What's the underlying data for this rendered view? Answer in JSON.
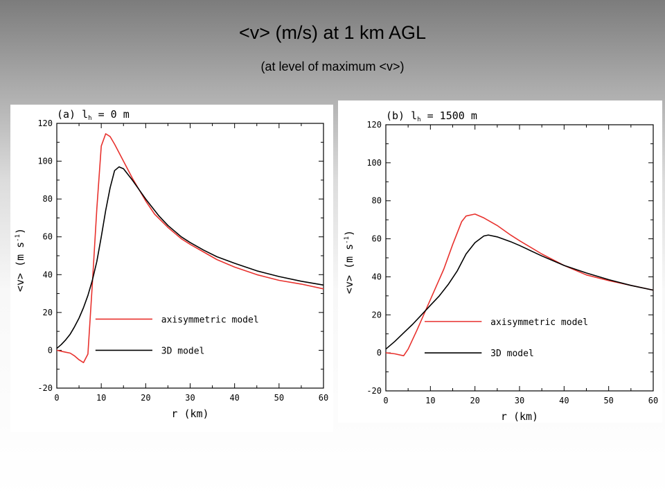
{
  "slide": {
    "title": "<v> (m/s)  at 1 km AGL",
    "subtitle": "(at level of maximum <v>)"
  },
  "chart_data": [
    {
      "type": "line",
      "panel_label": "(a)  l",
      "panel_label_sub": "h",
      "panel_label_value": " =  0  m",
      "xlabel": "r  (km)",
      "ylabel": "<v>  (m s",
      "ylabel_sup": "-1",
      "ylabel_close": ")",
      "xlim": [
        0,
        60
      ],
      "ylim": [
        -20,
        120
      ],
      "xticks": [
        "0",
        "10",
        "20",
        "30",
        "40",
        "50",
        "60"
      ],
      "yticks": [
        "-20",
        "0",
        "20",
        "40",
        "60",
        "80",
        "100",
        "120"
      ],
      "grid": false,
      "legend_position": "lower-right",
      "colors": {
        "axisymmetric": "#e8312d",
        "3d": "#000000"
      },
      "series": [
        {
          "name": "axisymmetric model",
          "color": "#e8312d",
          "x": [
            0,
            1,
            2,
            3,
            4,
            5,
            6,
            7,
            8,
            9,
            10,
            11,
            12,
            13,
            15,
            17,
            20,
            22,
            25,
            28,
            30,
            33,
            36,
            40,
            45,
            50,
            55,
            60
          ],
          "y": [
            0,
            -0.5,
            -1,
            -1.5,
            -3,
            -5,
            -6.5,
            -2,
            35,
            75,
            108,
            114.5,
            113,
            109,
            100,
            91,
            79,
            72,
            65,
            59,
            56,
            52,
            48,
            44,
            40,
            37,
            35,
            32.5
          ]
        },
        {
          "name": "3D model",
          "color": "#000000",
          "x": [
            0,
            1,
            2,
            3,
            4,
            5,
            6,
            7,
            8,
            9,
            10,
            11,
            12,
            13,
            14,
            15,
            17,
            20,
            23,
            25,
            28,
            30,
            33,
            36,
            40,
            45,
            50,
            55,
            60
          ],
          "y": [
            1,
            3,
            5.5,
            8.5,
            12.5,
            17,
            22.5,
            29,
            37,
            47,
            60,
            74,
            86,
            95,
            97,
            96,
            90,
            80,
            71,
            66,
            60,
            57,
            53,
            49.5,
            46,
            42,
            39,
            36.5,
            34.5
          ]
        }
      ]
    },
    {
      "type": "line",
      "panel_label": "(b)  l",
      "panel_label_sub": "h",
      "panel_label_value": " =  1500  m",
      "xlabel": "r  (km)",
      "ylabel": "<v>  (m s",
      "ylabel_sup": "-1",
      "ylabel_close": ")",
      "xlim": [
        0,
        60
      ],
      "ylim": [
        -20,
        120
      ],
      "xticks": [
        "0",
        "10",
        "20",
        "30",
        "40",
        "50",
        "60"
      ],
      "yticks": [
        "-20",
        "0",
        "20",
        "40",
        "60",
        "80",
        "100",
        "120"
      ],
      "grid": false,
      "legend_position": "lower-right",
      "colors": {
        "axisymmetric": "#e8312d",
        "3d": "#000000"
      },
      "series": [
        {
          "name": "axisymmetric model",
          "color": "#e8312d",
          "x": [
            0,
            2,
            4,
            5,
            7,
            10,
            13,
            15,
            17,
            18,
            20,
            22,
            25,
            28,
            30,
            35,
            40,
            45,
            50,
            55,
            60
          ],
          "y": [
            0,
            -0.5,
            -1.5,
            2,
            12,
            28,
            44,
            57,
            69,
            72,
            73,
            71,
            67,
            62,
            59,
            52,
            46,
            41,
            38,
            35.5,
            33
          ]
        },
        {
          "name": "3D model",
          "color": "#000000",
          "x": [
            0,
            2,
            4,
            6,
            8,
            10,
            12,
            14,
            16,
            18,
            20,
            22,
            23,
            25,
            28,
            30,
            35,
            40,
            45,
            50,
            55,
            60
          ],
          "y": [
            2,
            6,
            10.5,
            15,
            20,
            25,
            30,
            36,
            43,
            52,
            58,
            61.5,
            62,
            61,
            58.5,
            56.5,
            51,
            46,
            42,
            38.5,
            35.5,
            33
          ]
        }
      ]
    }
  ]
}
